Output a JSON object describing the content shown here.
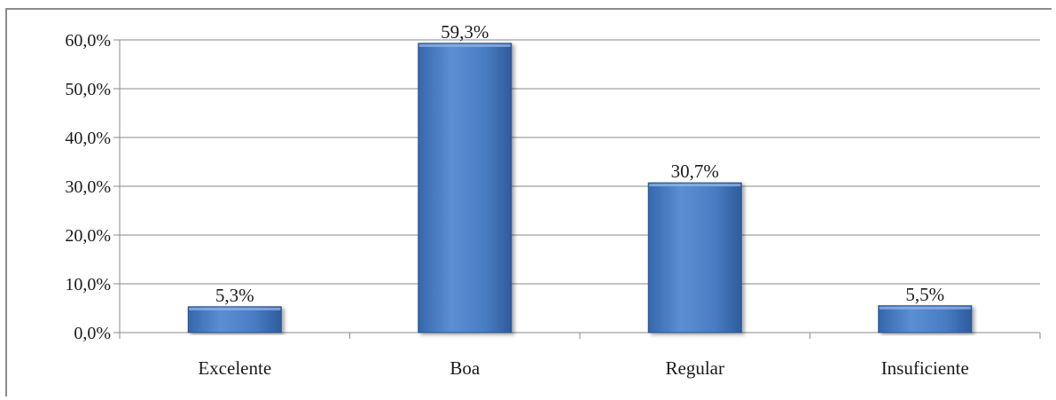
{
  "chart_data": {
    "type": "bar",
    "categories": [
      "Excelente",
      "Boa",
      "Regular",
      "Insuficiente"
    ],
    "values": [
      5.3,
      59.3,
      30.7,
      5.5
    ],
    "value_labels": [
      "5,3%",
      "59,3%",
      "30,7%",
      "5,5%"
    ],
    "yticks": [
      "0,0%",
      "10,0%",
      "20,0%",
      "30,0%",
      "40,0%",
      "50,0%",
      "60,0%"
    ],
    "ylim": [
      0,
      60
    ],
    "grid": true,
    "bar_color": "#4a7ec4",
    "title": "",
    "xlabel": "",
    "ylabel": ""
  }
}
